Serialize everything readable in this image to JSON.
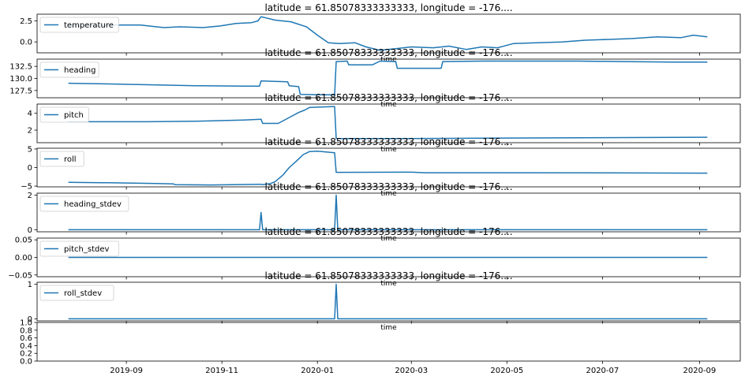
{
  "figure": {
    "panel_title": "latitude = 61.85078333333333, longitude = -176....",
    "xlabel": "time",
    "line_color": "#1f77b4"
  },
  "chart_data": [
    {
      "type": "line",
      "name": "temperature",
      "title": "latitude = 61.85078333333333, longitude = -176....",
      "xlabel": "time",
      "ylabel": "",
      "ylim": [
        -1.3,
        3.3
      ],
      "yticks": [
        0.0,
        2.5
      ],
      "ytick_labels": [
        "0.0",
        "2.5"
      ],
      "legend": "upper left",
      "points": [
        [
          "2019-07-26",
          1.9
        ],
        [
          "2019-08-10",
          1.9
        ],
        [
          "2019-08-25",
          2.0
        ],
        [
          "2019-09-10",
          2.0
        ],
        [
          "2019-09-25",
          1.7
        ],
        [
          "2019-10-05",
          1.8
        ],
        [
          "2019-10-20",
          1.7
        ],
        [
          "2019-10-31",
          1.9
        ],
        [
          "2019-11-10",
          2.2
        ],
        [
          "2019-11-20",
          2.3
        ],
        [
          "2019-11-24",
          2.5
        ],
        [
          "2019-11-26",
          3.0
        ],
        [
          "2019-12-05",
          2.6
        ],
        [
          "2019-12-15",
          2.4
        ],
        [
          "2019-12-25",
          1.8
        ],
        [
          "2020-01-01",
          0.8
        ],
        [
          "2020-01-08",
          -0.1
        ],
        [
          "2020-01-15",
          -0.2
        ],
        [
          "2020-01-25",
          -0.1
        ],
        [
          "2020-02-01",
          -0.6
        ],
        [
          "2020-02-10",
          -1.0
        ],
        [
          "2020-02-20",
          -0.8
        ],
        [
          "2020-03-01",
          -0.6
        ],
        [
          "2020-03-15",
          -0.7
        ],
        [
          "2020-03-25",
          -0.5
        ],
        [
          "2020-04-05",
          -0.9
        ],
        [
          "2020-04-15",
          -0.6
        ],
        [
          "2020-04-25",
          -0.7
        ],
        [
          "2020-05-05",
          -0.2
        ],
        [
          "2020-05-20",
          -0.1
        ],
        [
          "2020-06-05",
          0.0
        ],
        [
          "2020-06-20",
          0.2
        ],
        [
          "2020-07-05",
          0.3
        ],
        [
          "2020-07-20",
          0.4
        ],
        [
          "2020-08-05",
          0.6
        ],
        [
          "2020-08-20",
          0.5
        ],
        [
          "2020-08-28",
          0.8
        ],
        [
          "2020-09-06",
          0.6
        ]
      ]
    },
    {
      "type": "line",
      "name": "heading",
      "title": "latitude = 61.85078333333333, longitude = -176....",
      "xlabel": "time",
      "ylabel": "",
      "ylim": [
        126.0,
        134.0
      ],
      "yticks": [
        127.5,
        130.0,
        132.5
      ],
      "ytick_labels": [
        "127.5",
        "130.0",
        "132.5"
      ],
      "legend": "upper left",
      "points": [
        [
          "2019-07-26",
          129.0
        ],
        [
          "2019-08-15",
          128.9
        ],
        [
          "2019-09-15",
          128.7
        ],
        [
          "2019-10-15",
          128.5
        ],
        [
          "2019-11-15",
          128.4
        ],
        [
          "2019-11-25",
          128.4
        ],
        [
          "2019-11-26",
          129.5
        ],
        [
          "2019-12-05",
          129.4
        ],
        [
          "2019-12-13",
          129.3
        ],
        [
          "2019-12-14",
          128.5
        ],
        [
          "2019-12-20",
          128.3
        ],
        [
          "2019-12-21",
          126.7
        ],
        [
          "2020-01-05",
          126.6
        ],
        [
          "2020-01-12",
          126.6
        ],
        [
          "2020-01-13",
          133.5
        ],
        [
          "2020-01-20",
          133.6
        ],
        [
          "2020-01-21",
          132.8
        ],
        [
          "2020-02-05",
          132.8
        ],
        [
          "2020-02-10",
          133.6
        ],
        [
          "2020-02-20",
          133.5
        ],
        [
          "2020-02-21",
          132.1
        ],
        [
          "2020-03-15",
          132.1
        ],
        [
          "2020-03-20",
          132.1
        ],
        [
          "2020-03-21",
          133.5
        ],
        [
          "2020-04-15",
          133.6
        ],
        [
          "2020-05-15",
          133.6
        ],
        [
          "2020-06-15",
          133.6
        ],
        [
          "2020-07-15",
          133.5
        ],
        [
          "2020-08-15",
          133.4
        ],
        [
          "2020-09-06",
          133.4
        ]
      ]
    },
    {
      "type": "line",
      "name": "pitch",
      "title": "latitude = 61.85078333333333, longitude = -176....",
      "xlabel": "time",
      "ylabel": "",
      "ylim": [
        0.5,
        5.1
      ],
      "yticks": [
        2,
        4
      ],
      "ytick_labels": [
        "2",
        "4"
      ],
      "legend": "upper left",
      "points": [
        [
          "2019-07-26",
          3.0
        ],
        [
          "2019-09-15",
          3.0
        ],
        [
          "2019-10-15",
          3.05
        ],
        [
          "2019-11-15",
          3.2
        ],
        [
          "2019-11-26",
          3.3
        ],
        [
          "2019-11-27",
          2.8
        ],
        [
          "2019-12-07",
          2.8
        ],
        [
          "2019-12-15",
          3.6
        ],
        [
          "2019-12-20",
          4.1
        ],
        [
          "2019-12-24",
          4.4
        ],
        [
          "2019-12-27",
          4.7
        ],
        [
          "2020-01-10",
          4.8
        ],
        [
          "2020-01-12",
          4.8
        ],
        [
          "2020-01-13",
          1.0
        ],
        [
          "2020-03-01",
          1.0
        ],
        [
          "2020-05-01",
          1.05
        ],
        [
          "2020-07-01",
          1.1
        ],
        [
          "2020-09-06",
          1.15
        ]
      ]
    },
    {
      "type": "line",
      "name": "roll",
      "title": "latitude = 61.85078333333333, longitude = -176....",
      "xlabel": "time",
      "ylabel": "",
      "ylim": [
        -5.2,
        5.2
      ],
      "yticks": [
        -5,
        0,
        5
      ],
      "ytick_labels": [
        "−5",
        "0",
        "5"
      ],
      "legend": "upper left",
      "points": [
        [
          "2019-07-26",
          -4.0
        ],
        [
          "2019-08-20",
          -4.1
        ],
        [
          "2019-09-20",
          -4.3
        ],
        [
          "2019-10-01",
          -4.4
        ],
        [
          "2019-10-02",
          -4.6
        ],
        [
          "2019-10-25",
          -4.7
        ],
        [
          "2019-11-26",
          -4.5
        ],
        [
          "2019-11-27",
          -4.6
        ],
        [
          "2019-12-02",
          -4.3
        ],
        [
          "2019-12-05",
          -3.8
        ],
        [
          "2019-12-10",
          -2.0
        ],
        [
          "2019-12-14",
          0.0
        ],
        [
          "2019-12-18",
          1.5
        ],
        [
          "2019-12-23",
          3.5
        ],
        [
          "2019-12-27",
          4.3
        ],
        [
          "2020-01-01",
          4.4
        ],
        [
          "2020-01-12",
          4.0
        ],
        [
          "2020-01-13",
          -1.3
        ],
        [
          "2020-03-01",
          -1.25
        ],
        [
          "2020-03-10",
          -1.4
        ],
        [
          "2020-05-01",
          -1.4
        ],
        [
          "2020-07-01",
          -1.45
        ],
        [
          "2020-09-06",
          -1.5
        ]
      ]
    },
    {
      "type": "line",
      "name": "heading_stdev",
      "title": "latitude = 61.85078333333333, longitude = -176....",
      "xlabel": "time",
      "ylabel": "",
      "ylim": [
        -0.12,
        2.12
      ],
      "yticks": [
        0,
        2
      ],
      "ytick_labels": [
        "0",
        "2"
      ],
      "legend": "upper left",
      "points": [
        [
          "2019-07-26",
          0
        ],
        [
          "2019-11-25",
          0
        ],
        [
          "2019-11-26",
          1.0
        ],
        [
          "2019-11-27",
          0
        ],
        [
          "2020-01-12",
          0
        ],
        [
          "2020-01-13",
          2.0
        ],
        [
          "2020-01-14",
          0
        ],
        [
          "2020-09-06",
          0
        ]
      ]
    },
    {
      "type": "line",
      "name": "pitch_stdev",
      "title": "latitude = 61.85078333333333, longitude = -176....",
      "xlabel": "time",
      "ylabel": "",
      "ylim": [
        -0.055,
        0.055
      ],
      "yticks": [
        -0.05,
        0.0,
        0.05
      ],
      "ytick_labels": [
        "−0.05",
        "0.00",
        "0.05"
      ],
      "legend": "upper left",
      "points": [
        [
          "2019-07-26",
          0
        ],
        [
          "2020-09-06",
          0
        ]
      ]
    },
    {
      "type": "line",
      "name": "roll_stdev",
      "title": "latitude = 61.85078333333333, longitude = -176....",
      "xlabel": "time",
      "ylabel": "",
      "ylim": [
        -0.06,
        1.06
      ],
      "yticks": [
        0,
        1
      ],
      "ytick_labels": [
        "0",
        "1"
      ],
      "legend": "upper left",
      "points": [
        [
          "2019-07-26",
          0
        ],
        [
          "2020-01-12",
          0
        ],
        [
          "2020-01-13",
          1.0
        ],
        [
          "2020-01-14",
          0
        ],
        [
          "2020-09-06",
          0
        ]
      ]
    },
    {
      "type": "line",
      "name": "",
      "title": "",
      "xlabel": "",
      "ylabel": "",
      "ylim": [
        0.0,
        1.0
      ],
      "yticks": [
        0.0,
        0.2,
        0.4,
        0.6,
        0.8,
        1.0
      ],
      "ytick_labels": [
        "0.0",
        "0.2",
        "0.4",
        "0.6",
        "0.8",
        "1.0"
      ],
      "xticks": [
        "2019-09-01",
        "2019-11-01",
        "2020-01-01",
        "2020-03-01",
        "2020-05-01",
        "2020-07-01",
        "2020-09-01"
      ],
      "xtick_labels": [
        "2019-09",
        "2019-11",
        "2020-01",
        "2020-03",
        "2020-05",
        "2020-07",
        "2020-09"
      ],
      "points": []
    }
  ],
  "x_axis": {
    "xlim": [
      "2019-07-06",
      "2020-09-27"
    ]
  }
}
